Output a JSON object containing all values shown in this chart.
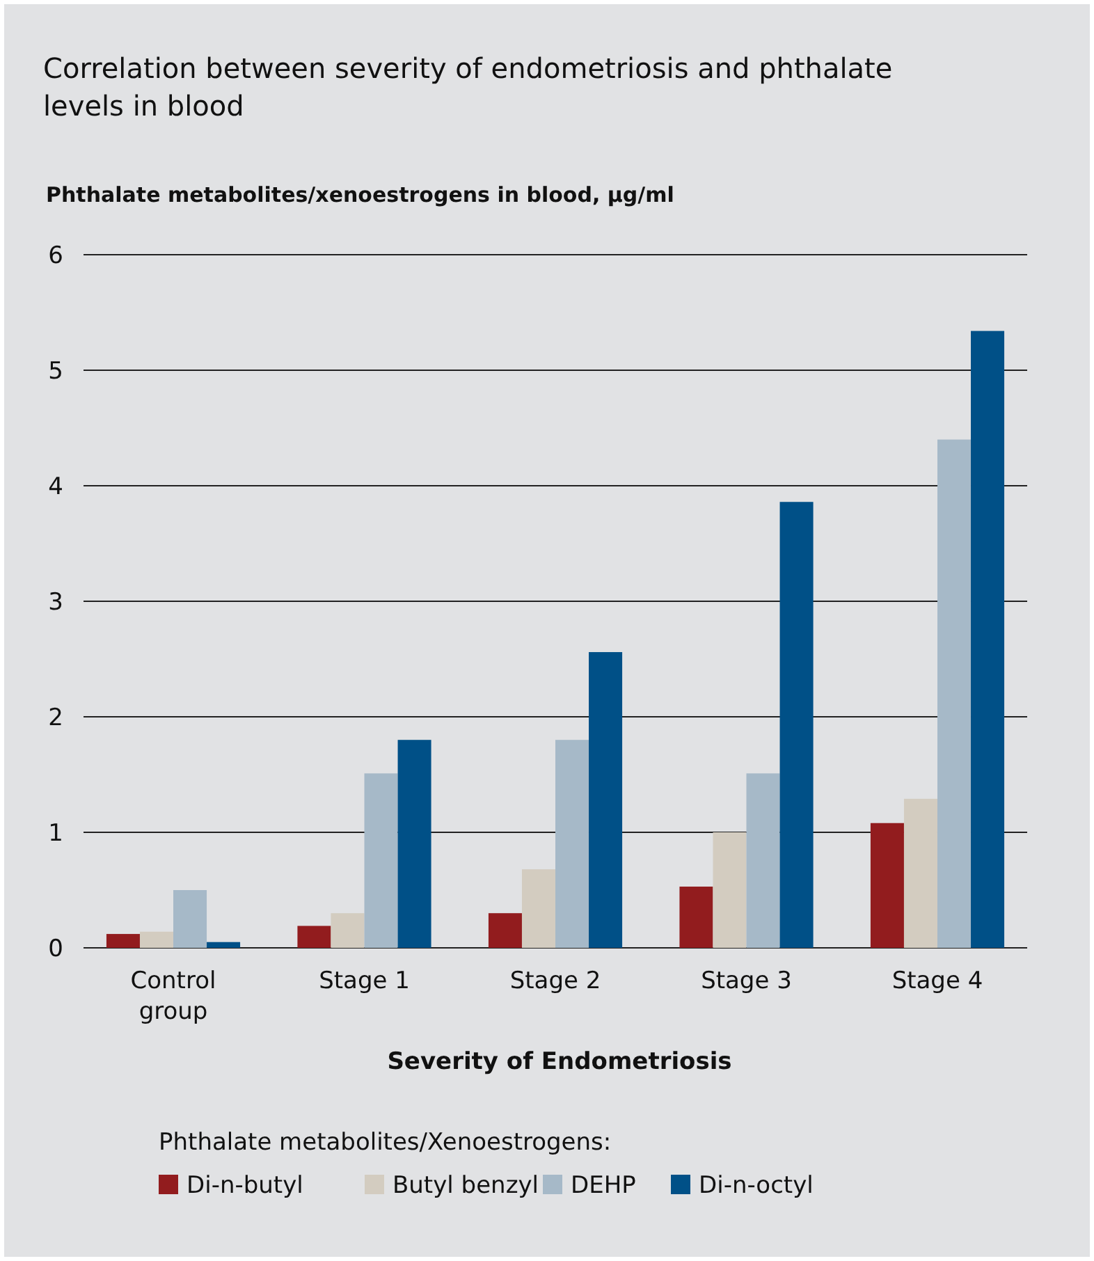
{
  "chart_data": {
    "type": "bar",
    "title": "Correlation between severity of endometriosis and phthalate levels in blood",
    "ylabel": "Phthalate metabolites/xenoestrogens in blood, µg/ml",
    "xlabel": "Severity of Endometriosis",
    "legend_title": "Phthalate metabolites/Xenoestrogens:",
    "categories": [
      "Control group",
      "Stage 1",
      "Stage 2",
      "Stage 3",
      "Stage 4"
    ],
    "series": [
      {
        "name": "Di-n-butyl",
        "color": "#921c1e",
        "values": [
          0.12,
          0.19,
          0.3,
          0.53,
          1.08
        ]
      },
      {
        "name": "Butyl benzyl",
        "color": "#d3ccc0",
        "values": [
          0.14,
          0.3,
          0.68,
          1.0,
          1.29
        ]
      },
      {
        "name": "DEHP",
        "color": "#a6b9c8",
        "values": [
          0.5,
          1.51,
          1.8,
          1.51,
          4.4
        ]
      },
      {
        "name": "Di-n-octyl",
        "color": "#005087",
        "values": [
          0.05,
          1.8,
          2.56,
          3.86,
          5.34
        ]
      }
    ],
    "ylim": [
      0,
      6
    ],
    "yticks": [
      0,
      1,
      2,
      3,
      4,
      5,
      6
    ],
    "grid": "y",
    "legend": "bottom"
  }
}
